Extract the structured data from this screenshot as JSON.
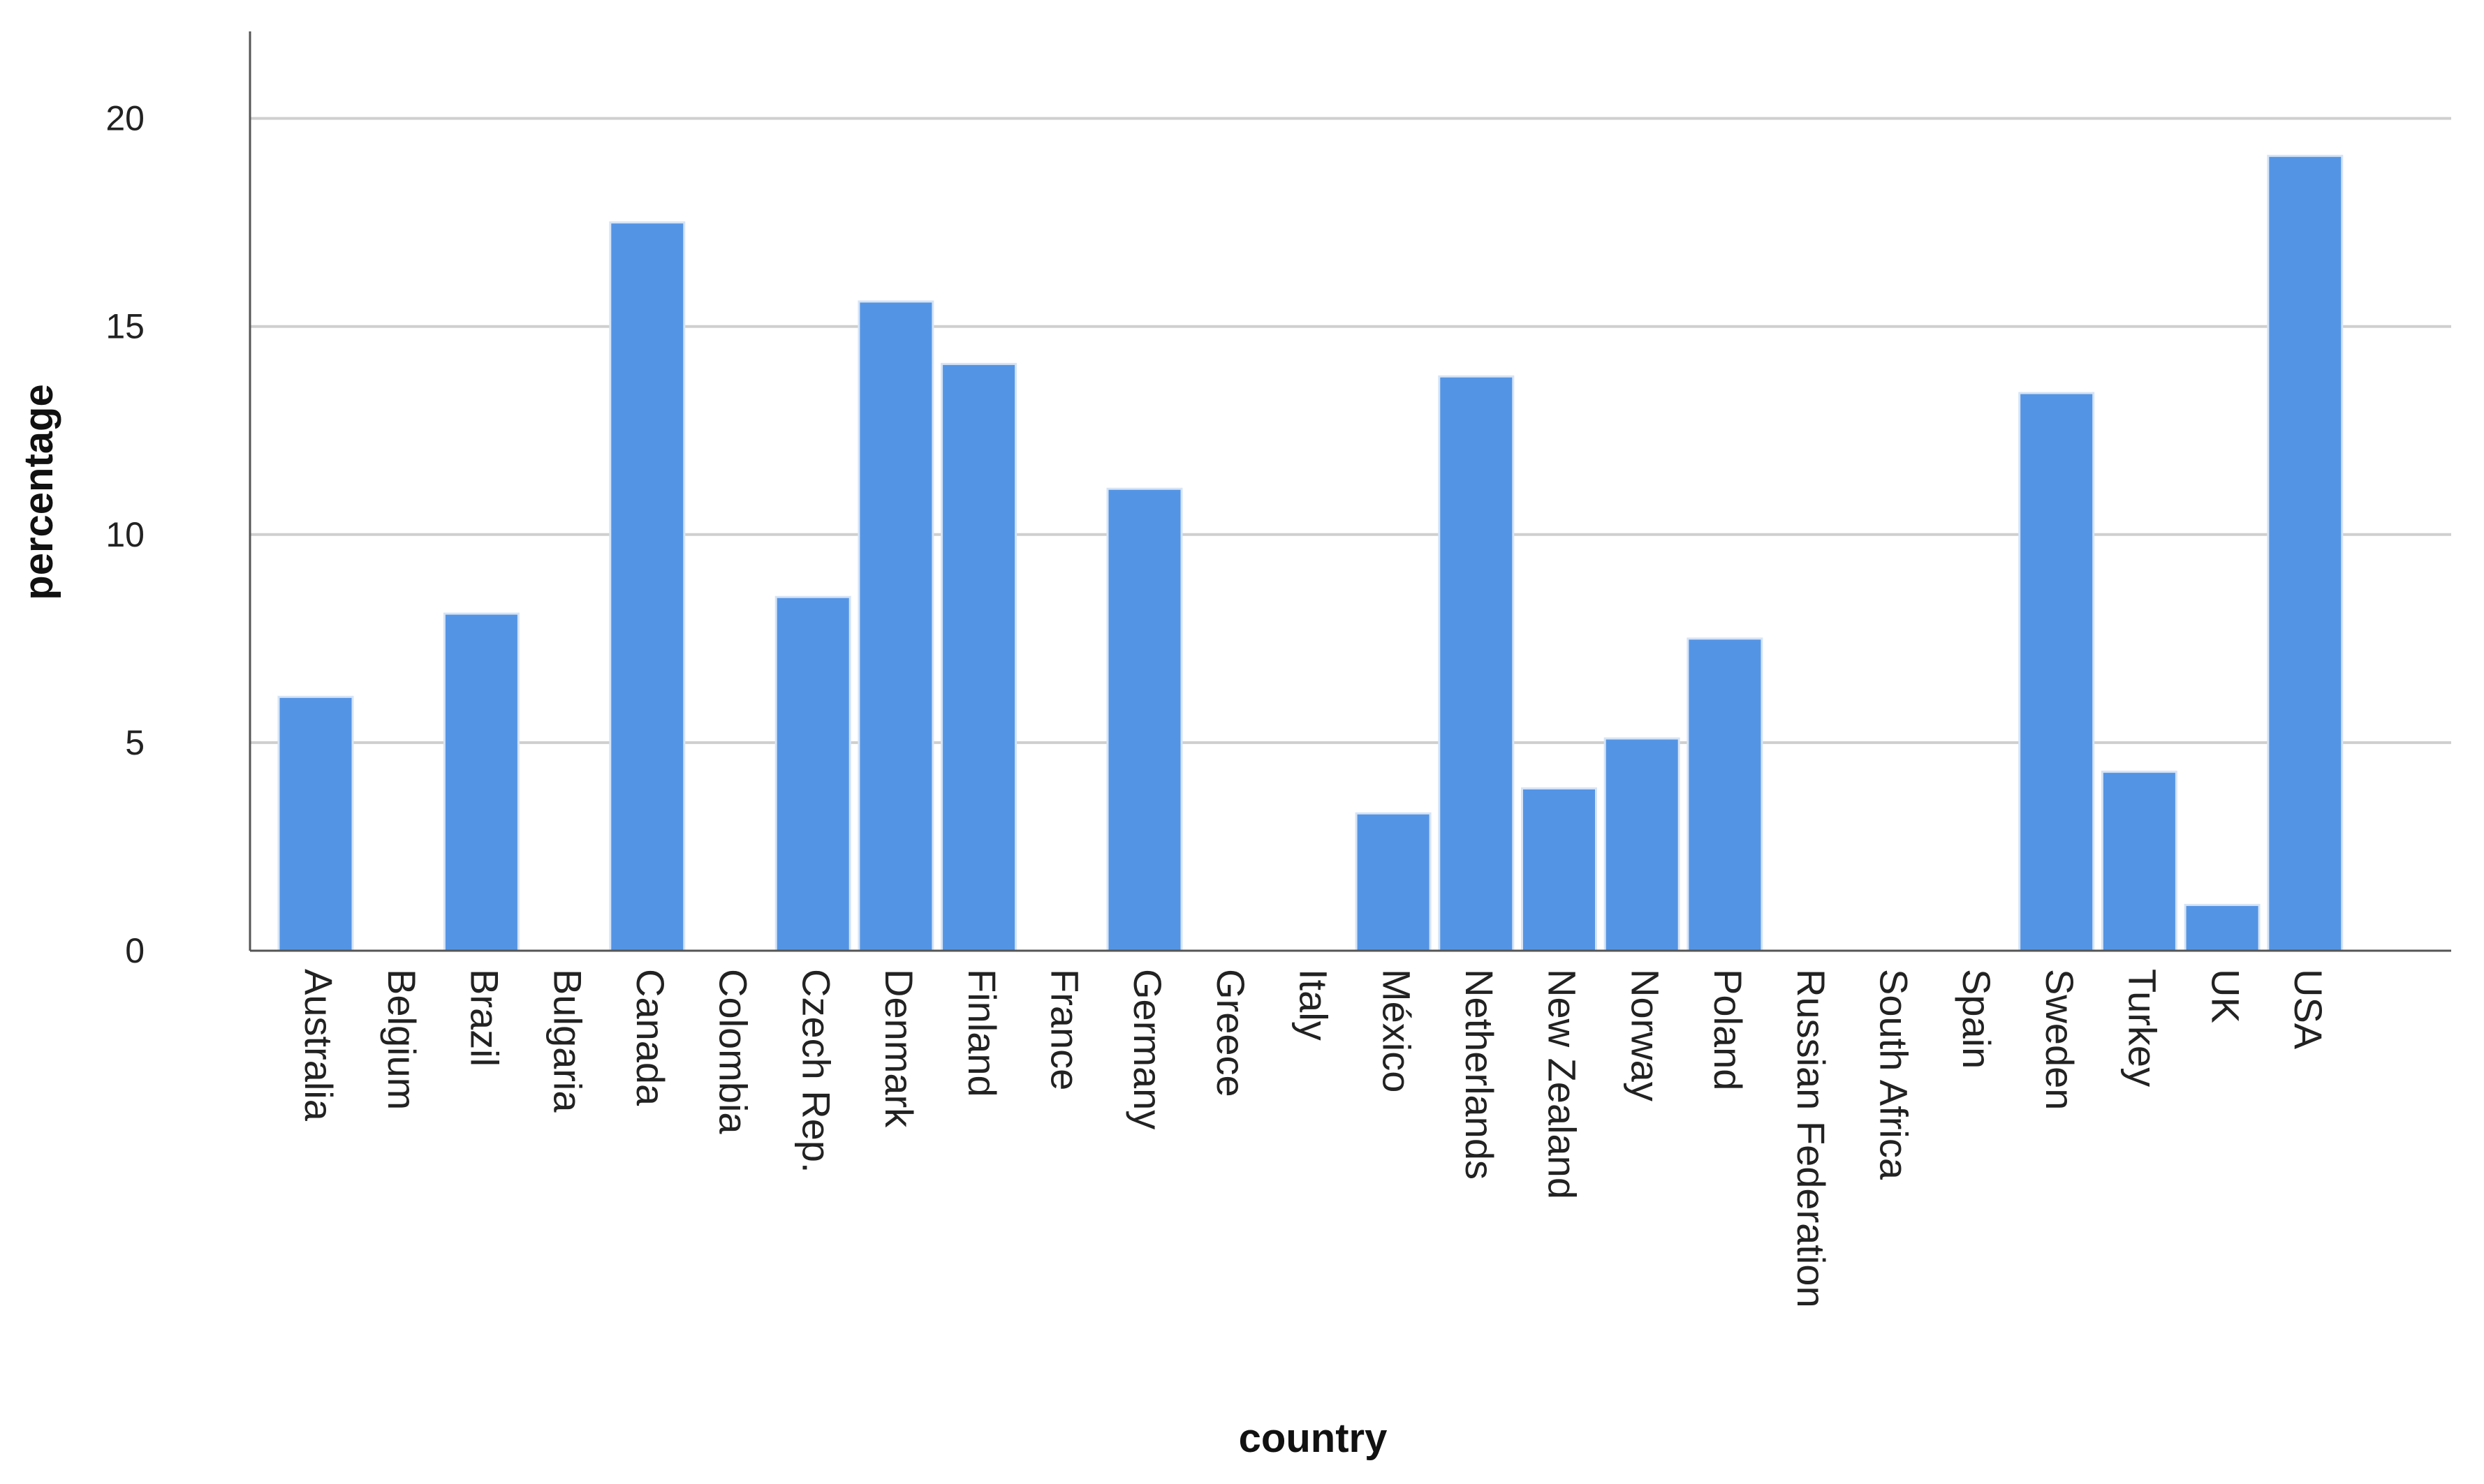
{
  "colors": {
    "bar": "#5494e4",
    "bar_stroke": "#d6e4f6",
    "grid": "#cfcfcf",
    "axis": "#555555"
  },
  "chart_data": {
    "type": "bar",
    "xlabel": "country",
    "ylabel": "percentage",
    "ylim": [
      0,
      21
    ],
    "yticks": [
      0,
      5,
      10,
      15,
      20
    ],
    "grid": "horizontal",
    "legend": "none",
    "categories": [
      "Australia",
      "Belgium",
      "Brazil",
      "Bulgaria",
      "Canada",
      "Colombia",
      "Czech Rep.",
      "Denmark",
      "Finland",
      "France",
      "Germany",
      "Greece",
      "Italy",
      "México",
      "Netherlands",
      "New Zealand",
      "Norway",
      "Poland",
      "Russian Federation",
      "South Africa",
      "Spain",
      "Sweden",
      "Turkey",
      "UK",
      "USA"
    ],
    "values": [
      6.1,
      0,
      8.1,
      0,
      17.5,
      0,
      8.5,
      15.6,
      14.1,
      0,
      11.1,
      0,
      0,
      3.3,
      13.8,
      3.9,
      5.1,
      7.5,
      0,
      0,
      0,
      13.4,
      4.3,
      1.1,
      19.1
    ]
  }
}
